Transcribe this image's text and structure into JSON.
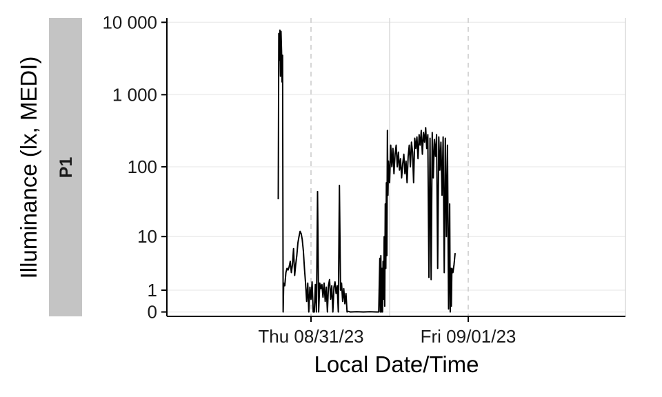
{
  "chart_data": {
    "type": "line",
    "facet_label": "P1",
    "xlabel": "Local Date/Time",
    "ylabel": "Illuminance (lx, MEDI)",
    "yscale": "symlog",
    "y_ticks": [
      {
        "value": 0,
        "label": "0"
      },
      {
        "value": 1,
        "label": "1"
      },
      {
        "value": 10,
        "label": "10"
      },
      {
        "value": 100,
        "label": "100"
      },
      {
        "value": 1000,
        "label": "1 000"
      },
      {
        "value": 10000,
        "label": "10 000"
      }
    ],
    "x_ticks": [
      {
        "value": "2023-08-31 00:00",
        "label": "Thu 08/31/23"
      },
      {
        "value": "2023-09-01 00:00",
        "label": "Fri 09/01/23"
      }
    ],
    "x_minor_ticks": [
      "2023-08-31 12:00",
      "2023-09-02 00:00"
    ],
    "xlim": [
      "2023-08-30 02:00",
      "2023-09-02 00:00"
    ],
    "ylim": [
      -0.15,
      11500
    ],
    "grid": true,
    "series": [
      {
        "color": "#000000",
        "points": [
          [
            "2023-08-30 19:00",
            35
          ],
          [
            "2023-08-30 19:05",
            7000
          ],
          [
            "2023-08-30 19:10",
            3000
          ],
          [
            "2023-08-30 19:15",
            7800
          ],
          [
            "2023-08-30 19:20",
            1800
          ],
          [
            "2023-08-30 19:25",
            7500
          ],
          [
            "2023-08-30 19:30",
            4000
          ],
          [
            "2023-08-30 19:35",
            1500
          ],
          [
            "2023-08-30 19:40",
            3500
          ],
          [
            "2023-08-30 19:45",
            0
          ],
          [
            "2023-08-30 19:50",
            1.5
          ],
          [
            "2023-08-30 20:00",
            1.3
          ],
          [
            "2023-08-30 20:10",
            2.5
          ],
          [
            "2023-08-30 20:20",
            3
          ],
          [
            "2023-08-30 20:30",
            2.8
          ],
          [
            "2023-08-30 20:40",
            3.2
          ],
          [
            "2023-08-30 20:50",
            4
          ],
          [
            "2023-08-30 21:00",
            2.5
          ],
          [
            "2023-08-30 21:10",
            3.5
          ],
          [
            "2023-08-30 21:20",
            6.5
          ],
          [
            "2023-08-30 21:30",
            2.2
          ],
          [
            "2023-08-30 21:40",
            3.5
          ],
          [
            "2023-08-30 21:50",
            5
          ],
          [
            "2023-08-30 22:00",
            8
          ],
          [
            "2023-08-30 22:10",
            10
          ],
          [
            "2023-08-30 22:20",
            12
          ],
          [
            "2023-08-30 22:30",
            11
          ],
          [
            "2023-08-30 22:40",
            9
          ],
          [
            "2023-08-30 22:50",
            6
          ],
          [
            "2023-08-30 23:00",
            3
          ],
          [
            "2023-08-30 23:10",
            1.5
          ],
          [
            "2023-08-30 23:20",
            0.4
          ],
          [
            "2023-08-30 23:30",
            1.5
          ],
          [
            "2023-08-30 23:40",
            0
          ],
          [
            "2023-08-30 23:50",
            1.2
          ],
          [
            "2023-08-31 00:00",
            0.5
          ],
          [
            "2023-08-31 00:10",
            1.6
          ],
          [
            "2023-08-31 00:20",
            0
          ],
          [
            "2023-08-31 00:30",
            0
          ],
          [
            "2023-08-31 00:40",
            1.4
          ],
          [
            "2023-08-31 00:50",
            0
          ],
          [
            "2023-08-31 01:00",
            45
          ],
          [
            "2023-08-31 01:10",
            0
          ],
          [
            "2023-08-31 01:20",
            1.5
          ],
          [
            "2023-08-31 01:30",
            1.1
          ],
          [
            "2023-08-31 01:40",
            1.4
          ],
          [
            "2023-08-31 01:50",
            0.6
          ],
          [
            "2023-08-31 02:00",
            1.5
          ],
          [
            "2023-08-31 02:10",
            0.4
          ],
          [
            "2023-08-31 02:20",
            1.2
          ],
          [
            "2023-08-31 02:30",
            0
          ],
          [
            "2023-08-31 02:40",
            1.3
          ],
          [
            "2023-08-31 02:50",
            1.8
          ],
          [
            "2023-08-31 03:00",
            0.5
          ],
          [
            "2023-08-31 03:10",
            1.3
          ],
          [
            "2023-08-31 03:20",
            0
          ],
          [
            "2023-08-31 03:30",
            1.2
          ],
          [
            "2023-08-31 03:40",
            1.6
          ],
          [
            "2023-08-31 03:50",
            0.8
          ],
          [
            "2023-08-31 04:00",
            1.3
          ],
          [
            "2023-08-31 04:10",
            0
          ],
          [
            "2023-08-31 04:20",
            55
          ],
          [
            "2023-08-31 04:30",
            1.0
          ],
          [
            "2023-08-31 04:40",
            1.5
          ],
          [
            "2023-08-31 04:50",
            0.4
          ],
          [
            "2023-08-31 05:00",
            1.1
          ],
          [
            "2023-08-31 05:10",
            0.3
          ],
          [
            "2023-08-31 05:20",
            0.8
          ],
          [
            "2023-08-31 05:30",
            0
          ],
          [
            "2023-08-31 05:40",
            0.02
          ],
          [
            "2023-08-31 06:00",
            0
          ],
          [
            "2023-08-31 07:00",
            0.01
          ],
          [
            "2023-08-31 08:00",
            0
          ],
          [
            "2023-08-31 09:00",
            0.01
          ],
          [
            "2023-08-31 10:00",
            0
          ],
          [
            "2023-08-31 10:20",
            0
          ],
          [
            "2023-08-31 10:30",
            4.5
          ],
          [
            "2023-08-31 10:35",
            0
          ],
          [
            "2023-08-31 10:40",
            5
          ],
          [
            "2023-08-31 10:45",
            0
          ],
          [
            "2023-08-31 10:50",
            3
          ],
          [
            "2023-08-31 10:55",
            0
          ],
          [
            "2023-08-31 11:00",
            4
          ],
          [
            "2023-08-31 11:05",
            0.5
          ],
          [
            "2023-08-31 11:10",
            10
          ],
          [
            "2023-08-31 11:15",
            0.2
          ],
          [
            "2023-08-31 11:20",
            30
          ],
          [
            "2023-08-31 11:25",
            3
          ],
          [
            "2023-08-31 11:30",
            60
          ],
          [
            "2023-08-31 11:35",
            5
          ],
          [
            "2023-08-31 11:40",
            320
          ],
          [
            "2023-08-31 11:45",
            40
          ],
          [
            "2023-08-31 11:50",
            120
          ],
          [
            "2023-08-31 12:00",
            60
          ],
          [
            "2023-08-31 12:10",
            200
          ],
          [
            "2023-08-31 12:20",
            100
          ],
          [
            "2023-08-31 12:30",
            180
          ],
          [
            "2023-08-31 12:40",
            80
          ],
          [
            "2023-08-31 12:50",
            150
          ],
          [
            "2023-08-31 13:00",
            200
          ],
          [
            "2023-08-31 13:10",
            100
          ],
          [
            "2023-08-31 13:20",
            160
          ],
          [
            "2023-08-31 13:30",
            90
          ],
          [
            "2023-08-31 13:40",
            130
          ],
          [
            "2023-08-31 13:50",
            70
          ],
          [
            "2023-08-31 14:00",
            110
          ],
          [
            "2023-08-31 14:10",
            150
          ],
          [
            "2023-08-31 14:20",
            80
          ],
          [
            "2023-08-31 14:30",
            120
          ],
          [
            "2023-08-31 14:40",
            60
          ],
          [
            "2023-08-31 14:50",
            140
          ],
          [
            "2023-08-31 15:00",
            200
          ],
          [
            "2023-08-31 15:10",
            100
          ],
          [
            "2023-08-31 15:20",
            220
          ],
          [
            "2023-08-31 15:30",
            160
          ],
          [
            "2023-08-31 15:40",
            60
          ],
          [
            "2023-08-31 15:50",
            250
          ],
          [
            "2023-08-31 16:00",
            180
          ],
          [
            "2023-08-31 16:10",
            260
          ],
          [
            "2023-08-31 16:20",
            130
          ],
          [
            "2023-08-31 16:30",
            280
          ],
          [
            "2023-08-31 16:40",
            200
          ],
          [
            "2023-08-31 16:50",
            320
          ],
          [
            "2023-08-31 17:00",
            150
          ],
          [
            "2023-08-31 17:10",
            300
          ],
          [
            "2023-08-31 17:20",
            220
          ],
          [
            "2023-08-31 17:30",
            350
          ],
          [
            "2023-08-31 17:40",
            180
          ],
          [
            "2023-08-31 17:50",
            280
          ],
          [
            "2023-08-31 18:00",
            2
          ],
          [
            "2023-08-31 18:10",
            250
          ],
          [
            "2023-08-31 18:20",
            1.8
          ],
          [
            "2023-08-31 18:30",
            300
          ],
          [
            "2023-08-31 18:40",
            70
          ],
          [
            "2023-08-31 18:50",
            240
          ],
          [
            "2023-08-31 19:00",
            140
          ],
          [
            "2023-08-31 19:10",
            280
          ],
          [
            "2023-08-31 19:20",
            3
          ],
          [
            "2023-08-31 19:30",
            260
          ],
          [
            "2023-08-31 19:40",
            90
          ],
          [
            "2023-08-31 19:50",
            220
          ],
          [
            "2023-08-31 20:00",
            40
          ],
          [
            "2023-08-31 20:10",
            260
          ],
          [
            "2023-08-31 20:20",
            2.5
          ],
          [
            "2023-08-31 20:30",
            250
          ],
          [
            "2023-08-31 20:40",
            10
          ],
          [
            "2023-08-31 20:50",
            200
          ],
          [
            "2023-08-31 21:00",
            0.1
          ],
          [
            "2023-08-31 21:10",
            30
          ],
          [
            "2023-08-31 21:15",
            0
          ],
          [
            "2023-08-31 21:20",
            3
          ],
          [
            "2023-08-31 21:25",
            0.2
          ],
          [
            "2023-08-31 21:30",
            3
          ],
          [
            "2023-08-31 21:40",
            2.5
          ],
          [
            "2023-08-31 21:50",
            3.5
          ],
          [
            "2023-08-31 22:00",
            5.5
          ]
        ]
      }
    ]
  }
}
